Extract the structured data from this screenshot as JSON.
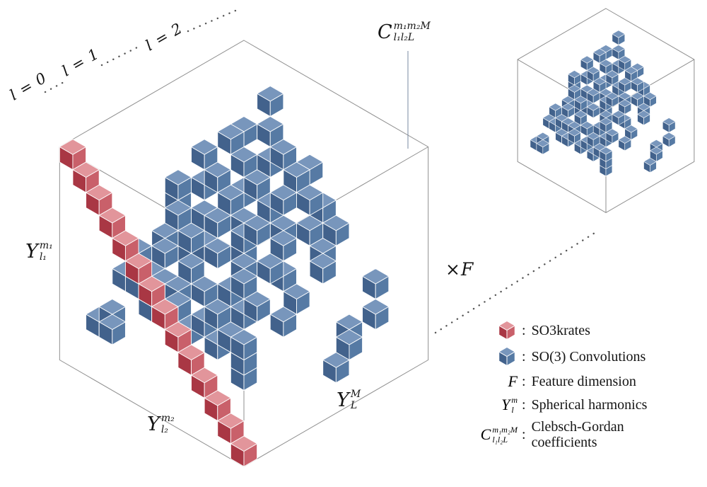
{
  "figure": {
    "grid_n": 14,
    "palettes": {
      "blue": {
        "top": "#7896bc",
        "left": "#42628c",
        "right": "#567aa4"
      },
      "red": {
        "top": "#e2959b",
        "left": "#a93744",
        "right": "#c9606a"
      }
    },
    "wire_color": "#8f8f8f",
    "dot_color": "#555555",
    "red_cells": [
      [
        0,
        13,
        13
      ],
      [
        1,
        13,
        12
      ],
      [
        2,
        13,
        11
      ],
      [
        3,
        13,
        10
      ],
      [
        4,
        13,
        9
      ],
      [
        5,
        13,
        8
      ],
      [
        6,
        13,
        7
      ],
      [
        7,
        13,
        6
      ],
      [
        8,
        13,
        5
      ],
      [
        9,
        13,
        4
      ],
      [
        10,
        13,
        3
      ],
      [
        11,
        13,
        2
      ],
      [
        12,
        13,
        1
      ],
      [
        13,
        13,
        0
      ]
    ],
    "blue_cells": [
      [
        3,
        1,
        12
      ],
      [
        4,
        2,
        11
      ],
      [
        6,
        3,
        11
      ],
      [
        5,
        5,
        11
      ],
      [
        8,
        4,
        11
      ],
      [
        3,
        4,
        11
      ],
      [
        7,
        6,
        11
      ],
      [
        9,
        6,
        11
      ],
      [
        10,
        5,
        11
      ],
      [
        2,
        2,
        10
      ],
      [
        5,
        3,
        10
      ],
      [
        6,
        5,
        10
      ],
      [
        8,
        6,
        10
      ],
      [
        10,
        4,
        10
      ],
      [
        11,
        6,
        10
      ],
      [
        4,
        6,
        10
      ],
      [
        7,
        2,
        10
      ],
      [
        12,
        5,
        10
      ],
      [
        9,
        8,
        10
      ],
      [
        1,
        4,
        9
      ],
      [
        3,
        3,
        9
      ],
      [
        5,
        6,
        9
      ],
      [
        7,
        5,
        9
      ],
      [
        8,
        8,
        9
      ],
      [
        10,
        7,
        9
      ],
      [
        12,
        6,
        9
      ],
      [
        6,
        8,
        9
      ],
      [
        11,
        9,
        9
      ],
      [
        13,
        7,
        9
      ],
      [
        2,
        7,
        9
      ],
      [
        2,
        5,
        8
      ],
      [
        4,
        4,
        8
      ],
      [
        6,
        6,
        8
      ],
      [
        8,
        5,
        8
      ],
      [
        9,
        9,
        8
      ],
      [
        11,
        8,
        8
      ],
      [
        13,
        9,
        8
      ],
      [
        5,
        9,
        8
      ],
      [
        3,
        8,
        8
      ],
      [
        10,
        10,
        8
      ],
      [
        12,
        11,
        8
      ],
      [
        7,
        9,
        8
      ],
      [
        1,
        6,
        7
      ],
      [
        3,
        6,
        7
      ],
      [
        5,
        8,
        7
      ],
      [
        7,
        7,
        7
      ],
      [
        9,
        10,
        7
      ],
      [
        11,
        11,
        7
      ],
      [
        13,
        10,
        7
      ],
      [
        6,
        10,
        7
      ],
      [
        8,
        11,
        7
      ],
      [
        12,
        8,
        7
      ],
      [
        4,
        10,
        7
      ],
      [
        10,
        12,
        7
      ],
      [
        2,
        8,
        6
      ],
      [
        4,
        8,
        6
      ],
      [
        6,
        11,
        6
      ],
      [
        8,
        9,
        6
      ],
      [
        10,
        9,
        6
      ],
      [
        12,
        12,
        6
      ],
      [
        5,
        11,
        6
      ],
      [
        9,
        12,
        6
      ],
      [
        7,
        12,
        6
      ],
      [
        11,
        12,
        6
      ],
      [
        1,
        9,
        5
      ],
      [
        3,
        10,
        5
      ],
      [
        5,
        12,
        5
      ],
      [
        8,
        12,
        5
      ],
      [
        10,
        11,
        5
      ],
      [
        6,
        12,
        5
      ],
      [
        12,
        12,
        5
      ],
      [
        13,
        3,
        4
      ],
      [
        12,
        2,
        5
      ],
      [
        13,
        5,
        3
      ],
      [
        12,
        4,
        3
      ],
      [
        2,
        10,
        4
      ],
      [
        4,
        11,
        4
      ],
      [
        9,
        11,
        4
      ],
      [
        11,
        11,
        3
      ],
      [
        0,
        9,
        3
      ],
      [
        1,
        11,
        2
      ],
      [
        0,
        11,
        1
      ],
      [
        2,
        12,
        2
      ],
      [
        13,
        6,
        2
      ],
      [
        11,
        3,
        2
      ]
    ]
  },
  "labels": {
    "l0": "l = 0",
    "l1": "l = 1",
    "l2": "l = 2",
    "cg": {
      "base": "C",
      "sup": "m₁m₂M",
      "sub": "l₁l₂L"
    },
    "y_left": {
      "base": "Y",
      "sup": "m₁",
      "sub": "l₁"
    },
    "y_bottom": {
      "base": "Y",
      "sup": "m₂",
      "sub": "l₂"
    },
    "y_right": {
      "base": "Y",
      "sup": "M",
      "sub": "L"
    },
    "xf": "×F"
  },
  "legend": {
    "separator": ":",
    "items": [
      {
        "icon": "red-cube",
        "label": "SO3krates"
      },
      {
        "icon": "blue-cube",
        "label": "SO(3) Convolutions"
      },
      {
        "symbol": {
          "base": "F"
        },
        "label": "Feature dimension"
      },
      {
        "symbol": {
          "base": "Y",
          "sup": "m",
          "sub": "l"
        },
        "label": "Spherical harmonics"
      },
      {
        "symbol": {
          "base": "C",
          "sup": "m₁m₂M",
          "sub": "l₁l₂L"
        },
        "label": "Clebsch-Gordan coefficients"
      }
    ]
  }
}
